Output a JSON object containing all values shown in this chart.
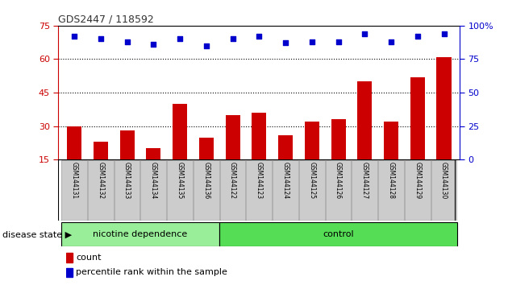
{
  "title": "GDS2447 / 118592",
  "samples": [
    "GSM144131",
    "GSM144132",
    "GSM144133",
    "GSM144134",
    "GSM144135",
    "GSM144136",
    "GSM144122",
    "GSM144123",
    "GSM144124",
    "GSM144125",
    "GSM144126",
    "GSM144127",
    "GSM144128",
    "GSM144129",
    "GSM144130"
  ],
  "counts": [
    30,
    23,
    28,
    20,
    40,
    25,
    35,
    36,
    26,
    32,
    33,
    50,
    32,
    52,
    61
  ],
  "percentile_ranks": [
    92,
    90,
    88,
    86,
    90,
    85,
    90,
    92,
    87,
    88,
    88,
    94,
    88,
    92,
    94
  ],
  "bar_color": "#cc0000",
  "dot_color": "#0000cc",
  "ylim_left": [
    15,
    75
  ],
  "yticks_left": [
    15,
    30,
    45,
    60,
    75
  ],
  "ylim_right": [
    0,
    100
  ],
  "yticks_right": [
    0,
    25,
    50,
    75,
    100
  ],
  "groups": [
    {
      "label": "nicotine dependence",
      "start": 0,
      "end": 6,
      "color": "#99ee99"
    },
    {
      "label": "control",
      "start": 6,
      "end": 15,
      "color": "#55dd55"
    }
  ],
  "group_label": "disease state",
  "legend_count_label": "count",
  "legend_percentile_label": "percentile rank within the sample",
  "title_color": "#333333",
  "left_axis_color": "#cc0000",
  "right_axis_color": "#0000cc",
  "grid_color": "#000000",
  "tick_bg_color": "#cccccc",
  "gap_color": "#ffffff"
}
